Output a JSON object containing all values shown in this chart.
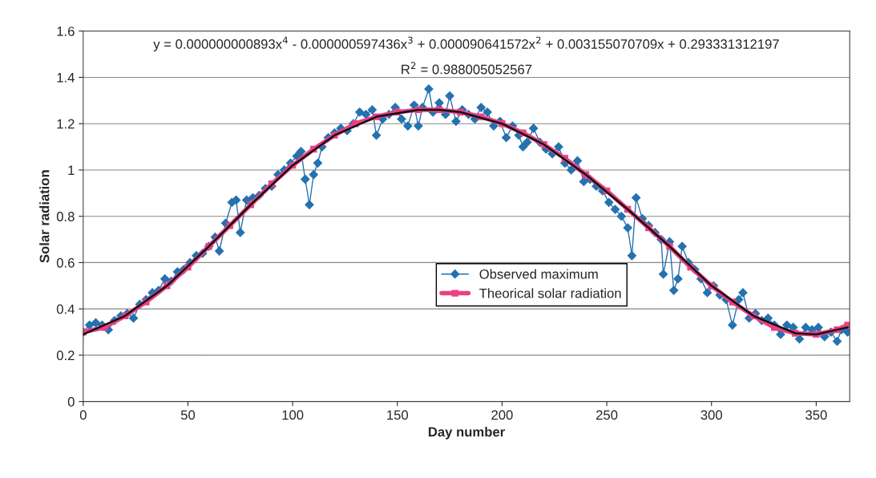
{
  "chart_data": {
    "type": "line",
    "xlabel": "Day number",
    "ylabel": "Solar radiation",
    "xlim": [
      0,
      366
    ],
    "xticks": [
      0,
      50,
      100,
      150,
      200,
      250,
      300,
      350
    ],
    "ylim": [
      0,
      1.6
    ],
    "yticks": [
      0,
      0.2,
      0.4,
      0.6,
      0.8,
      1,
      1.2,
      1.4,
      1.6
    ],
    "grid": "y",
    "legend": "center",
    "annotations": [
      "y = 0.000000000893x$^{4}$ - 0.000000597436x$^{3}$ + 0.000090641572x$^{2}$ + 0.003155070709x + 0.293331312197",
      "R$^{2}$ = 0.988005052567"
    ],
    "series": [
      {
        "name": "Observed maximum",
        "color": "#2472b0",
        "marker": "diamond",
        "x": [
          0,
          3,
          6,
          9,
          12,
          15,
          18,
          21,
          24,
          27,
          30,
          33,
          36,
          39,
          42,
          45,
          48,
          51,
          54,
          57,
          60,
          63,
          65,
          68,
          71,
          73,
          75,
          78,
          81,
          84,
          87,
          90,
          93,
          96,
          99,
          102,
          104,
          106,
          108,
          110,
          112,
          114,
          117,
          120,
          123,
          126,
          129,
          132,
          135,
          138,
          140,
          143,
          146,
          149,
          152,
          155,
          158,
          160,
          162,
          165,
          167,
          170,
          173,
          175,
          178,
          181,
          184,
          187,
          190,
          193,
          196,
          199,
          202,
          205,
          208,
          210,
          212,
          215,
          218,
          221,
          224,
          227,
          230,
          233,
          236,
          239,
          242,
          245,
          248,
          251,
          254,
          257,
          260,
          262,
          264,
          267,
          270,
          273,
          276,
          277,
          280,
          282,
          284,
          286,
          289,
          292,
          295,
          298,
          301,
          304,
          307,
          310,
          313,
          315,
          318,
          321,
          324,
          327,
          330,
          333,
          336,
          339,
          342,
          345,
          348,
          351,
          354,
          357,
          360,
          362,
          365
        ],
        "values": [
          0.3,
          0.33,
          0.34,
          0.33,
          0.31,
          0.35,
          0.37,
          0.38,
          0.36,
          0.42,
          0.44,
          0.47,
          0.48,
          0.53,
          0.52,
          0.56,
          0.57,
          0.6,
          0.63,
          0.64,
          0.67,
          0.71,
          0.65,
          0.77,
          0.86,
          0.87,
          0.73,
          0.87,
          0.88,
          0.89,
          0.92,
          0.93,
          0.98,
          1.0,
          1.03,
          1.06,
          1.08,
          0.96,
          0.85,
          0.98,
          1.03,
          1.1,
          1.14,
          1.16,
          1.18,
          1.17,
          1.2,
          1.25,
          1.24,
          1.26,
          1.15,
          1.22,
          1.24,
          1.27,
          1.22,
          1.19,
          1.28,
          1.19,
          1.27,
          1.35,
          1.25,
          1.29,
          1.24,
          1.32,
          1.21,
          1.26,
          1.24,
          1.22,
          1.27,
          1.25,
          1.19,
          1.21,
          1.14,
          1.19,
          1.15,
          1.1,
          1.12,
          1.18,
          1.12,
          1.09,
          1.07,
          1.1,
          1.03,
          1.0,
          1.04,
          0.95,
          0.96,
          0.93,
          0.91,
          0.86,
          0.83,
          0.8,
          0.75,
          0.63,
          0.88,
          0.79,
          0.76,
          0.73,
          0.7,
          0.55,
          0.69,
          0.48,
          0.53,
          0.67,
          0.6,
          0.57,
          0.53,
          0.47,
          0.5,
          0.46,
          0.44,
          0.33,
          0.44,
          0.47,
          0.36,
          0.38,
          0.35,
          0.36,
          0.33,
          0.29,
          0.33,
          0.32,
          0.27,
          0.32,
          0.31,
          0.32,
          0.28,
          0.3,
          0.26,
          0.31,
          0.3
        ]
      },
      {
        "name": "Theorical solar radiation",
        "color": "#ec3f84",
        "marker": "square",
        "x": [
          0,
          10,
          20,
          30,
          40,
          50,
          60,
          70,
          80,
          90,
          100,
          110,
          120,
          130,
          140,
          150,
          160,
          170,
          180,
          190,
          200,
          210,
          220,
          230,
          240,
          250,
          260,
          270,
          280,
          290,
          300,
          310,
          320,
          330,
          340,
          350,
          360,
          365
        ],
        "values": [
          0.3,
          0.32,
          0.37,
          0.43,
          0.5,
          0.58,
          0.67,
          0.76,
          0.85,
          0.94,
          1.02,
          1.09,
          1.15,
          1.2,
          1.23,
          1.25,
          1.26,
          1.26,
          1.25,
          1.23,
          1.2,
          1.16,
          1.11,
          1.05,
          0.98,
          0.91,
          0.83,
          0.75,
          0.67,
          0.58,
          0.5,
          0.43,
          0.37,
          0.32,
          0.295,
          0.29,
          0.31,
          0.33
        ]
      },
      {
        "type": "line",
        "color": "#111111",
        "marker": "none",
        "x": [
          0,
          20,
          40,
          60,
          80,
          100,
          120,
          140,
          160,
          170,
          180,
          200,
          220,
          240,
          260,
          280,
          300,
          320,
          340,
          350,
          360,
          365
        ],
        "values": [
          0.29,
          0.37,
          0.5,
          0.67,
          0.85,
          1.02,
          1.15,
          1.23,
          1.26,
          1.26,
          1.25,
          1.2,
          1.11,
          0.98,
          0.83,
          0.67,
          0.5,
          0.37,
          0.295,
          0.29,
          0.31,
          0.32
        ]
      }
    ]
  }
}
